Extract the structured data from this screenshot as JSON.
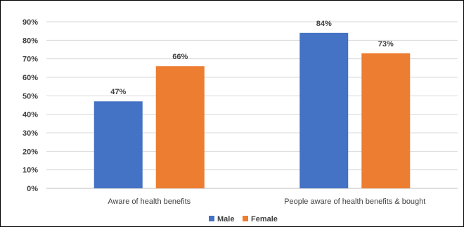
{
  "chart_data": {
    "type": "bar",
    "categories": [
      "Aware of health benefits",
      "People aware of health benefits & bought"
    ],
    "series": [
      {
        "name": "Male",
        "values": [
          47,
          84
        ],
        "color": "#4472C4"
      },
      {
        "name": "Female",
        "values": [
          66,
          73
        ],
        "color": "#ED7D31"
      }
    ],
    "data_labels": [
      [
        "47%",
        "84%"
      ],
      [
        "66%",
        "73%"
      ]
    ],
    "ylim": [
      0,
      90
    ],
    "yticks": [
      "0%",
      "10%",
      "20%",
      "30%",
      "40%",
      "50%",
      "60%",
      "70%",
      "80%",
      "90%"
    ],
    "grid": true,
    "legend_position": "bottom",
    "title": "",
    "xlabel": "",
    "ylabel": ""
  }
}
